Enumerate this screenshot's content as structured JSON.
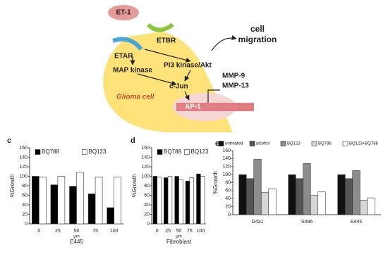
{
  "diagram": {
    "ligand": "ET-1",
    "receptor_a": "ETAR",
    "receptor_b": "ETBR",
    "pi3k": "PI3 kinase/Akt",
    "mapk": "MAP kinase",
    "cjun": "c-Jun",
    "ap1": "AP-1",
    "cell": "Glioma cell",
    "migration_1": "cell",
    "migration_2": "migration",
    "mmp9": "MMP-9",
    "mmp13": "MMP-13"
  },
  "chart_data": [
    {
      "type": "bar",
      "panel": "c",
      "y_label": "%Growth",
      "x_label": "E445",
      "x_unit": "μm",
      "categories": [
        "0",
        "25",
        "50",
        "75",
        "100"
      ],
      "series": [
        {
          "name": "BQ788",
          "color": "#000000",
          "values": [
            100,
            82,
            79,
            63,
            34
          ]
        },
        {
          "name": "BQ123",
          "color": "#ffffff",
          "values": [
            98,
            100,
            108,
            98,
            98
          ]
        }
      ],
      "ylim": [
        0,
        160
      ],
      "yticks": [
        0,
        20,
        40,
        60,
        80,
        100,
        120,
        140,
        160
      ]
    },
    {
      "type": "bar",
      "panel": "d",
      "y_label": "%Growth",
      "x_label": "Fibroblast",
      "x_unit": "μm",
      "categories": [
        "0",
        "25",
        "50",
        "75",
        "100"
      ],
      "series": [
        {
          "name": "BQ788",
          "color": "#000000",
          "values": [
            100,
            97,
            100,
            90,
            105
          ]
        },
        {
          "name": "BQ123",
          "color": "#ffffff",
          "values": [
            98,
            100,
            93,
            97,
            100
          ]
        }
      ],
      "ylim": [
        0,
        160
      ],
      "yticks": [
        0,
        20,
        40,
        60,
        80,
        100,
        120,
        140,
        160
      ]
    },
    {
      "type": "bar",
      "panel": "e",
      "y_label": "%Growth",
      "categories": [
        "D431",
        "S496",
        "E445"
      ],
      "series": [
        {
          "name": "untreated",
          "color": "#111111",
          "values": [
            100,
            100,
            100
          ]
        },
        {
          "name": "alcohol",
          "color": "#555555",
          "values": [
            90,
            90,
            90
          ]
        },
        {
          "name": "BQ123",
          "color": "#8c8c8c",
          "values": [
            138,
            128,
            110
          ]
        },
        {
          "name": "BQ788",
          "color": "#d6d6d6",
          "values": [
            55,
            48,
            36
          ]
        },
        {
          "name": "BQ123+BQ788",
          "color": "#ffffff",
          "values": [
            65,
            57,
            42
          ]
        }
      ],
      "ylim": [
        0,
        160
      ],
      "yticks": [
        0,
        20,
        40,
        60,
        80,
        100,
        120,
        140,
        160
      ]
    }
  ]
}
